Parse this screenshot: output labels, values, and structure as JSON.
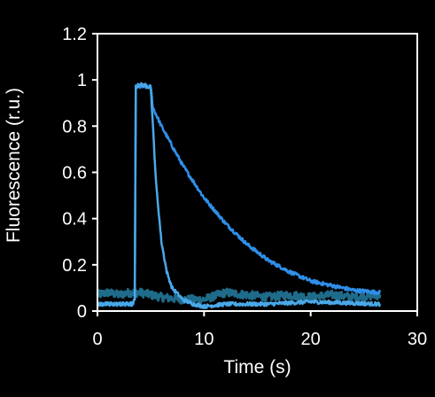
{
  "chart_data": {
    "type": "line",
    "title": "",
    "xlabel": "Time (s)",
    "ylabel": "Fluorescence (r.u.)",
    "xlim": [
      0,
      30
    ],
    "ylim": [
      0,
      1.2
    ],
    "x_ticks": [
      0,
      10,
      20,
      30
    ],
    "y_ticks": [
      0,
      0.2,
      0.4,
      0.6,
      0.8,
      1,
      1.2
    ],
    "x_tick_labels": [
      "0",
      "10",
      "20",
      "30"
    ],
    "y_tick_labels": [
      "0",
      "0.2",
      "0.4",
      "0.6",
      "0.8",
      "1",
      "1.2"
    ],
    "grid": false,
    "legend": "none",
    "colors": {
      "background": "#000000",
      "axes": "#ffffff",
      "text": "#ffffff",
      "slow_trace": "#2f8fe8",
      "fast_trace": "#4aa8e8",
      "baseline_trace": "#1f6b8a"
    },
    "series": [
      {
        "color": "#1f6b8a",
        "x": [
          0,
          1,
          2,
          3,
          3.6,
          4,
          6,
          8,
          10,
          12,
          14,
          16,
          18,
          20,
          22,
          24,
          26.5
        ],
        "y": [
          0.07,
          0.08,
          0.07,
          0.08,
          0.08,
          0.08,
          0.06,
          0.05,
          0.05,
          0.08,
          0.07,
          0.06,
          0.07,
          0.06,
          0.07,
          0.06,
          0.07
        ]
      },
      {
        "color": "#2f8fe8",
        "x": [
          0,
          3.3,
          3.5,
          3.6,
          4,
          5,
          5.2,
          6,
          8,
          10,
          12,
          14,
          16,
          18,
          20,
          22,
          24,
          26.5
        ],
        "y": [
          0.03,
          0.03,
          0.05,
          0.97,
          0.97,
          0.97,
          0.88,
          0.8,
          0.63,
          0.49,
          0.38,
          0.29,
          0.22,
          0.17,
          0.13,
          0.11,
          0.09,
          0.08
        ]
      },
      {
        "color": "#4aa8e8",
        "x": [
          0,
          3.3,
          3.5,
          3.6,
          4,
          5,
          5.2,
          5.5,
          6,
          6.5,
          7,
          8,
          9,
          10,
          12,
          16,
          20,
          26.5
        ],
        "y": [
          0.03,
          0.03,
          0.05,
          0.97,
          0.98,
          0.97,
          0.8,
          0.55,
          0.3,
          0.17,
          0.1,
          0.05,
          0.03,
          0.02,
          0.03,
          0.03,
          0.04,
          0.03
        ]
      }
    ]
  }
}
